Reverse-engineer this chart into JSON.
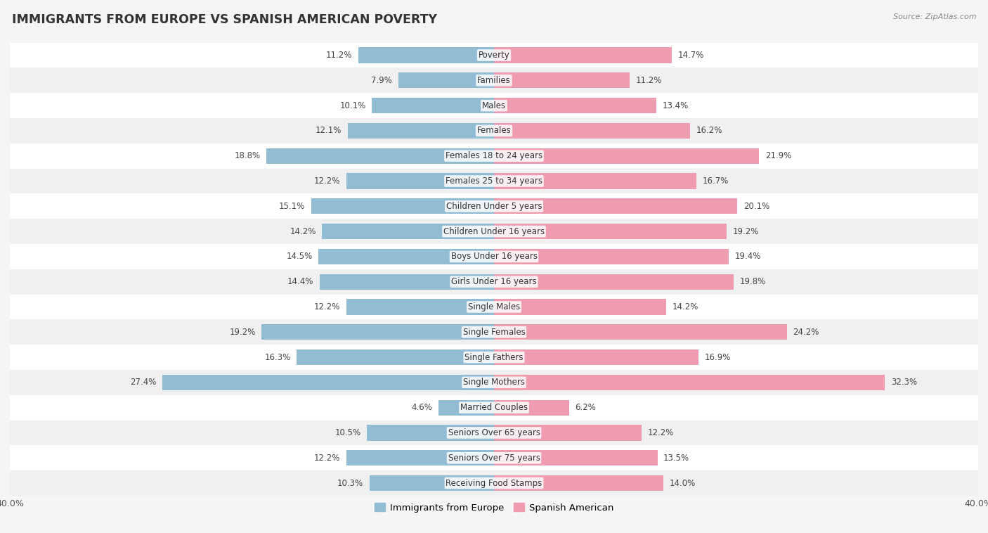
{
  "title": "IMMIGRANTS FROM EUROPE VS SPANISH AMERICAN POVERTY",
  "source": "Source: ZipAtlas.com",
  "categories": [
    "Poverty",
    "Families",
    "Males",
    "Females",
    "Females 18 to 24 years",
    "Females 25 to 34 years",
    "Children Under 5 years",
    "Children Under 16 years",
    "Boys Under 16 years",
    "Girls Under 16 years",
    "Single Males",
    "Single Females",
    "Single Fathers",
    "Single Mothers",
    "Married Couples",
    "Seniors Over 65 years",
    "Seniors Over 75 years",
    "Receiving Food Stamps"
  ],
  "europe_values": [
    11.2,
    7.9,
    10.1,
    12.1,
    18.8,
    12.2,
    15.1,
    14.2,
    14.5,
    14.4,
    12.2,
    19.2,
    16.3,
    27.4,
    4.6,
    10.5,
    12.2,
    10.3
  ],
  "spanish_values": [
    14.7,
    11.2,
    13.4,
    16.2,
    21.9,
    16.7,
    20.1,
    19.2,
    19.4,
    19.8,
    14.2,
    24.2,
    16.9,
    32.3,
    6.2,
    12.2,
    13.5,
    14.0
  ],
  "europe_color": "#92BCD4",
  "spanish_color": "#F09CB0",
  "row_color_odd": "#f0f0f0",
  "row_color_even": "#ffffff",
  "background_color": "#f5f5f5",
  "axis_max": 40.0,
  "bar_height": 0.62,
  "legend_europe": "Immigrants from Europe",
  "legend_spanish": "Spanish American",
  "value_fontsize": 8.5,
  "category_fontsize": 8.5,
  "title_fontsize": 12.5
}
